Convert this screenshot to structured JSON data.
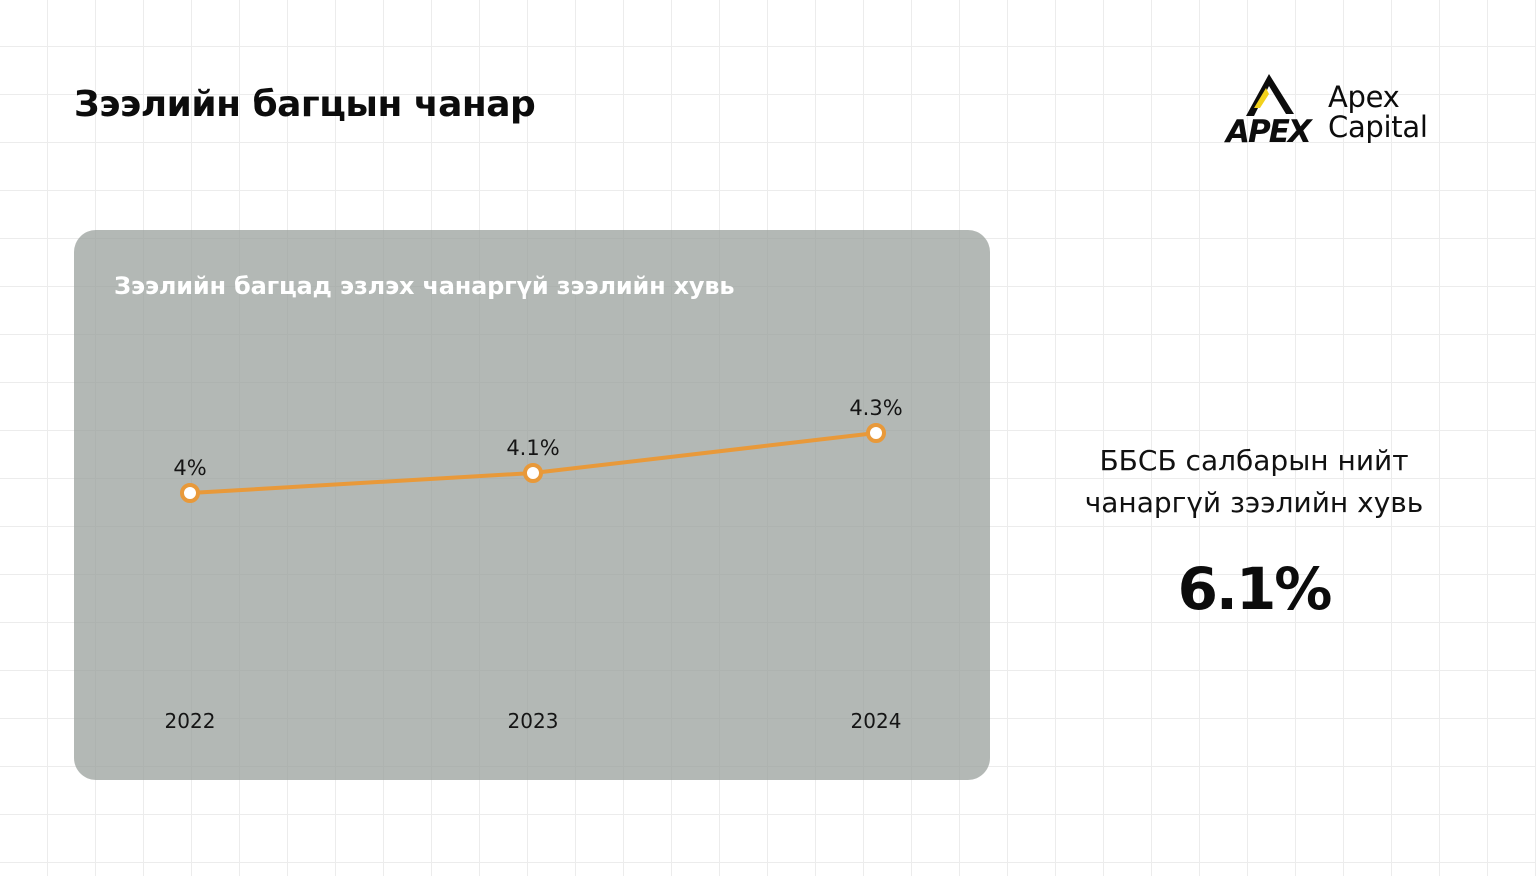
{
  "page": {
    "title": "Зээлийн багцын чанар"
  },
  "logo": {
    "mark_text": "APEX",
    "name_line1": "Apex",
    "name_line2": "Capital",
    "accent_color": "#f2d11c"
  },
  "chart_data": {
    "type": "line",
    "title": "Зээлийн багцад эзлэх чанаргүй зээлийн хувь",
    "xlabel": "",
    "ylabel": "",
    "categories": [
      "2022",
      "2023",
      "2024"
    ],
    "series": [
      {
        "values": [
          4.0,
          4.1,
          4.3
        ],
        "data_labels": [
          "4%",
          "4.1%",
          "4.3%"
        ],
        "color": "#e8993a"
      }
    ],
    "ylim": [
      0,
      5
    ],
    "grid": false,
    "legend": "none"
  },
  "stat": {
    "label_line1": "ББСБ салбарын нийт",
    "label_line2": "чанаргүй зээлийн хувь",
    "value": "6.1%"
  }
}
